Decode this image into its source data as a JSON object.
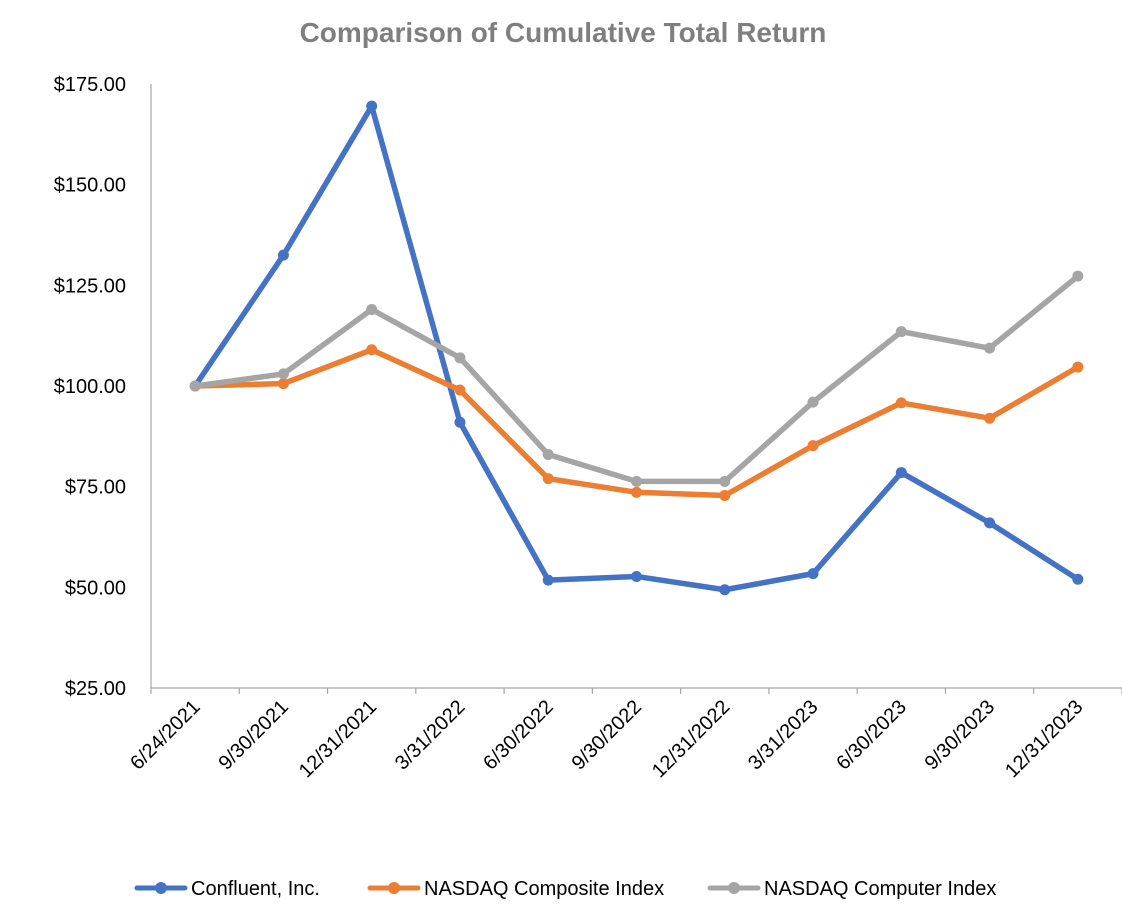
{
  "chart_data": {
    "type": "line",
    "title": "Comparison of Cumulative Total Return",
    "xlabel": "",
    "ylabel": "",
    "categories": [
      "6/24/2021",
      "9/30/2021",
      "12/31/2021",
      "3/31/2022",
      "6/30/2022",
      "9/30/2022",
      "12/31/2022",
      "3/31/2023",
      "6/30/2023",
      "9/30/2023",
      "12/31/2023"
    ],
    "ylim": [
      25,
      175
    ],
    "yticks": [
      25,
      50,
      75,
      100,
      125,
      150,
      175
    ],
    "ytick_labels": [
      "$25.00",
      "$50.00",
      "$75.00",
      "$100.00",
      "$125.00",
      "$150.00",
      "$175.00"
    ],
    "grid": false,
    "legend_position": "bottom",
    "series": [
      {
        "name": "Confluent, Inc.",
        "color": "#4472c4",
        "values": [
          100,
          132.5,
          169.5,
          91,
          51.8,
          52.7,
          49.4,
          53.4,
          78.5,
          66,
          52
        ]
      },
      {
        "name": "NASDAQ Composite Index",
        "color": "#ed7d31",
        "values": [
          100,
          100.6,
          109,
          99,
          77,
          73.6,
          72.8,
          85.2,
          95.8,
          92,
          104.7
        ]
      },
      {
        "name": "NASDAQ Computer Index",
        "color": "#a5a5a5",
        "values": [
          100,
          103,
          119,
          107,
          83,
          76.3,
          76.3,
          96,
          113.5,
          109.4,
          127.3
        ]
      }
    ]
  }
}
